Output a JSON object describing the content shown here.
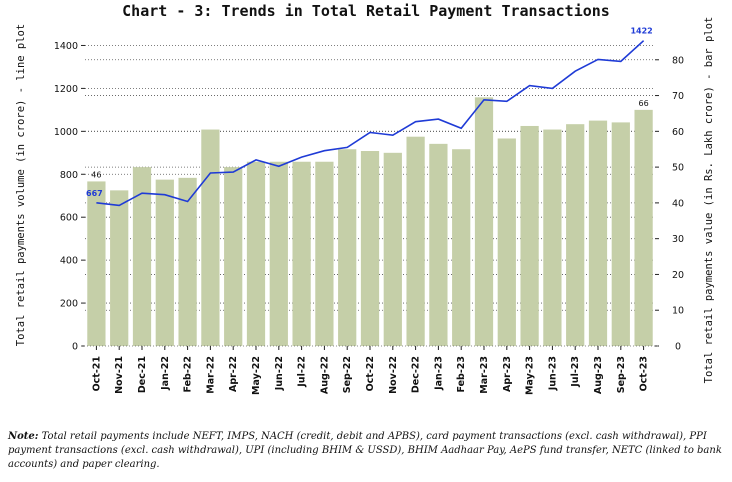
{
  "chart_data": {
    "type": "bar+line",
    "title": "Chart - 3: Trends in Total Retail Payment Transactions",
    "categories": [
      "Oct-21",
      "Nov-21",
      "Dec-21",
      "Jan-22",
      "Feb-22",
      "Mar-22",
      "Apr-22",
      "May-22",
      "Jun-22",
      "Jul-22",
      "Aug-22",
      "Sep-22",
      "Oct-22",
      "Nov-22",
      "Dec-22",
      "Jan-23",
      "Feb-23",
      "Mar-23",
      "Apr-23",
      "May-23",
      "Jun-23",
      "Jul-23",
      "Aug-23",
      "Sep-23",
      "Oct-23"
    ],
    "left_axis": {
      "label": "Total retail payments volume (in crore) - line plot",
      "lim": [
        0,
        1500
      ],
      "ticks": [
        "0",
        "200",
        "400",
        "600",
        "800",
        "1000",
        "1200",
        "1400"
      ]
    },
    "right_axis": {
      "label": "Total retail payments value (in Rs. Lakh crore) - bar plot",
      "lim": [
        0,
        90
      ],
      "ticks": [
        "0",
        "10",
        "20",
        "30",
        "40",
        "50",
        "60",
        "70",
        "80"
      ]
    },
    "series": [
      {
        "name": "value",
        "type": "bar",
        "axis": "right",
        "color": "#c5cfa8",
        "values": [
          46,
          43.5,
          50,
          46.5,
          47,
          60.5,
          50,
          51.5,
          51.5,
          51.5,
          51.5,
          55,
          54.5,
          54,
          58.5,
          56.5,
          55,
          69.5,
          58,
          61.5,
          60.5,
          62,
          63,
          62.5,
          66
        ]
      },
      {
        "name": "volume",
        "type": "line",
        "axis": "left",
        "color": "#1f3bd6",
        "values": [
          667,
          655,
          712,
          705,
          673,
          806,
          810,
          867,
          837,
          880,
          910,
          925,
          995,
          982,
          1045,
          1057,
          1014,
          1147,
          1140,
          1213,
          1200,
          1280,
          1335,
          1326,
          1422
        ]
      }
    ],
    "data_labels": [
      {
        "series": "value",
        "index": 0,
        "text": "46"
      },
      {
        "series": "value",
        "index": 24,
        "text": "66"
      },
      {
        "series": "volume",
        "index": 0,
        "text": "667"
      },
      {
        "series": "volume",
        "index": 24,
        "text": "1422"
      }
    ],
    "grid": "horizontal dotted"
  },
  "note": {
    "prefix": "Note:",
    "text": " Total retail payments include NEFT, IMPS, NACH (credit, debit and APBS), card payment transactions (excl. cash withdrawal), PPI payment transactions (excl. cash withdrawal), UPI (including BHIM & USSD), BHIM Aadhaar Pay, AePS fund transfer, NETC (linked to bank accounts) and paper clearing."
  }
}
